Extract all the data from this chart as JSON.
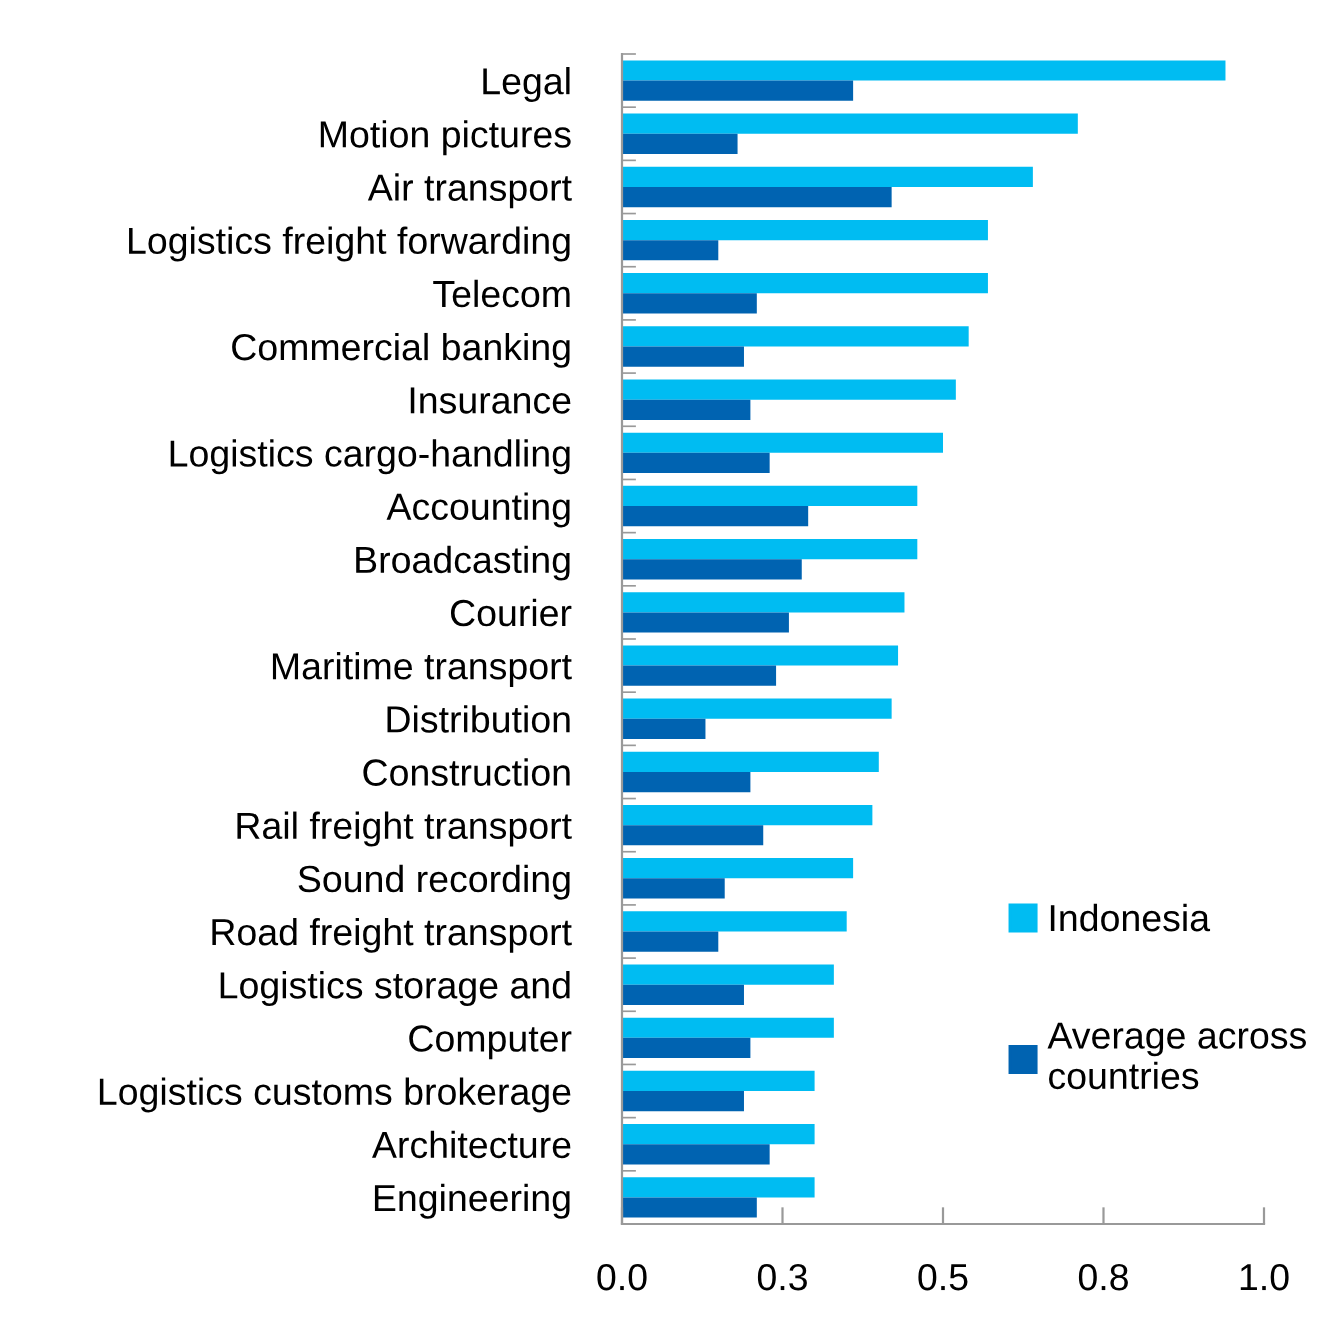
{
  "chart_data": {
    "type": "bar",
    "orientation": "horizontal",
    "categories": [
      "Legal",
      "Motion pictures",
      "Air transport",
      "Logistics freight forwarding",
      "Telecom",
      "Commercial banking",
      "Insurance",
      "Logistics cargo-handling",
      "Accounting",
      "Broadcasting",
      "Courier",
      "Maritime transport",
      "Distribution",
      "Construction",
      "Rail freight transport",
      "Sound recording",
      "Road freight transport",
      "Logistics storage and",
      "Computer",
      "Logistics customs brokerage",
      "Architecture",
      "Engineering"
    ],
    "series": [
      {
        "name": "Indonesia",
        "color": "#00bcf2",
        "values": [
          0.94,
          0.71,
          0.64,
          0.57,
          0.57,
          0.54,
          0.52,
          0.5,
          0.46,
          0.46,
          0.44,
          0.43,
          0.42,
          0.4,
          0.39,
          0.36,
          0.35,
          0.33,
          0.33,
          0.3,
          0.3,
          0.3
        ]
      },
      {
        "name": "Average across\ncountries",
        "color": "#0063b1",
        "values": [
          0.36,
          0.18,
          0.42,
          0.15,
          0.21,
          0.19,
          0.2,
          0.23,
          0.29,
          0.28,
          0.26,
          0.24,
          0.13,
          0.2,
          0.22,
          0.16,
          0.15,
          0.19,
          0.2,
          0.19,
          0.23,
          0.21
        ]
      }
    ],
    "xlim": [
      0,
      1.0
    ],
    "xticks": [
      {
        "value": 0,
        "label": "0.0"
      },
      {
        "value": 0.25,
        "label": "0.3"
      },
      0.5,
      {
        "value": 0.75,
        "label": "0.8"
      },
      {
        "value": 1,
        "label": "1.0"
      }
    ],
    "grid": false,
    "legend": "bottom right"
  }
}
